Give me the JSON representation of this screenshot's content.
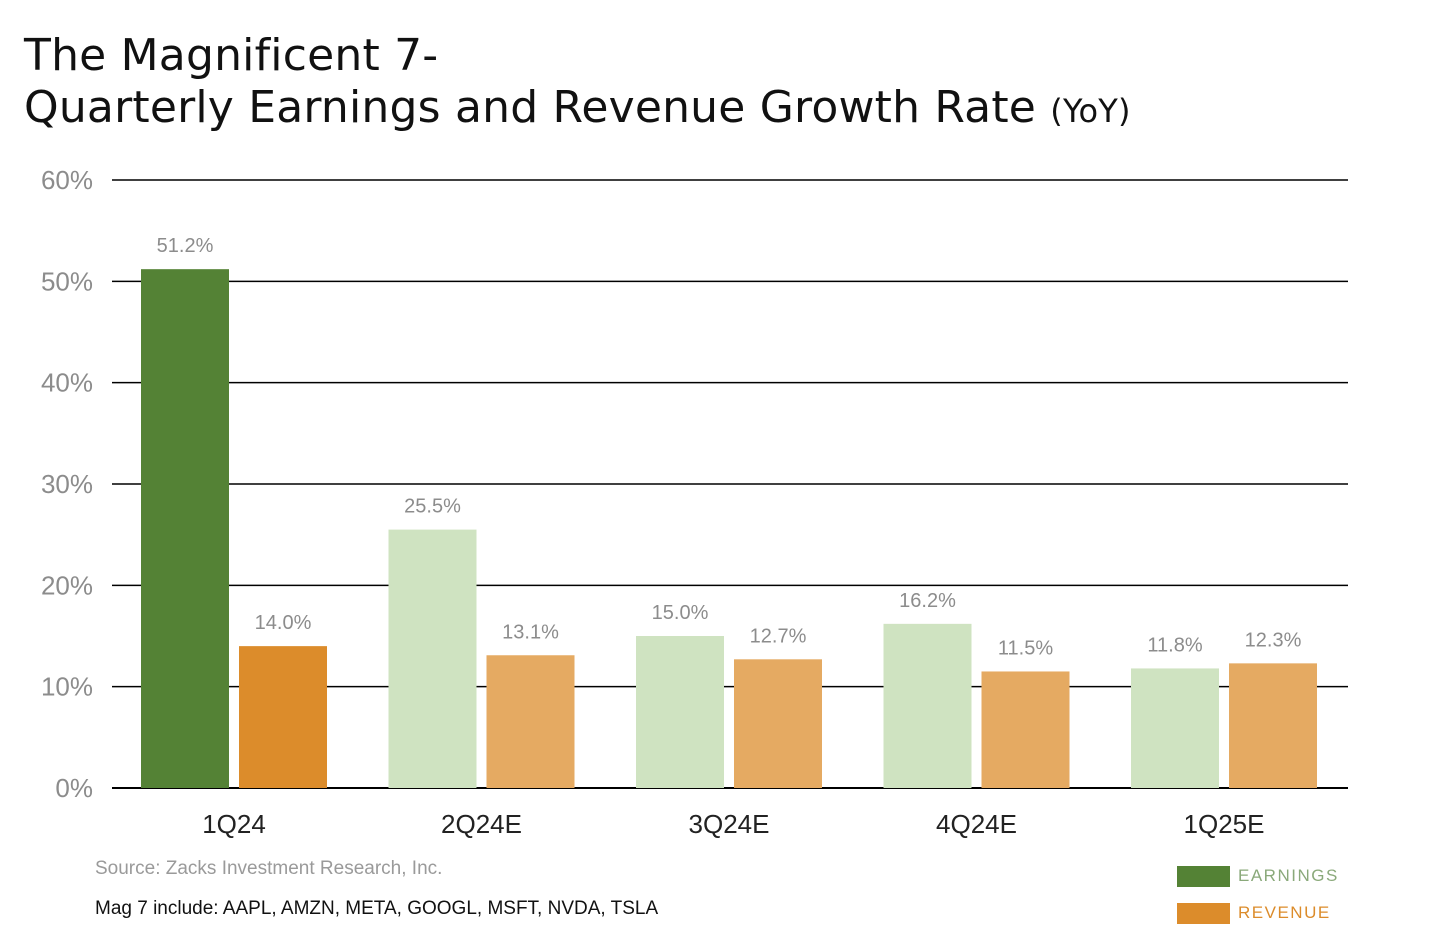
{
  "title": {
    "line1": "The Magnificent 7-",
    "line2": "Quarterly Earnings and Revenue Growth Rate",
    "suffix": "(YoY)"
  },
  "colors": {
    "earnings_actual": "#548235",
    "revenue_actual": "#DC8C2B",
    "earnings_estimate": "#CFE3C1",
    "revenue_estimate": "#E5AA62",
    "label_text": "#8C8C8C",
    "axis_text": "#8C8C8C",
    "gridline": "#000000"
  },
  "chart_data": {
    "type": "bar",
    "title": "The Magnificent 7- Quarterly Earnings and Revenue Growth Rate (YoY)",
    "xlabel": "",
    "ylabel": "",
    "ylim": [
      0,
      60
    ],
    "yticks": [
      0,
      10,
      20,
      30,
      40,
      50,
      60
    ],
    "ytick_labels": [
      "0%",
      "10%",
      "20%",
      "30%",
      "40%",
      "50%",
      "60%"
    ],
    "grid": true,
    "categories": [
      "1Q24",
      "2Q24E",
      "3Q24E",
      "4Q24E",
      "1Q25E"
    ],
    "series": [
      {
        "name": "EARNINGS",
        "values": [
          51.2,
          25.5,
          15.0,
          16.2,
          11.8
        ],
        "labels": [
          "51.2%",
          "25.5%",
          "15.0%",
          "16.2%",
          "11.8%"
        ]
      },
      {
        "name": "REVENUE",
        "values": [
          14.0,
          13.1,
          12.7,
          11.5,
          12.3
        ],
        "labels": [
          "14.0%",
          "13.1%",
          "12.7%",
          "11.5%",
          "12.3%"
        ]
      }
    ],
    "actual_categories": [
      "1Q24"
    ],
    "legend_position": "bottom-right"
  },
  "footer": {
    "source": "Source: Zacks Investment Research, Inc.",
    "note": "Mag 7 include: AAPL, AMZN, META, GOOGL, MSFT, NVDA, TSLA"
  },
  "legend": {
    "items": [
      {
        "label": "EARNINGS",
        "color": "#548235",
        "text_color": "#8AA97A"
      },
      {
        "label": "REVENUE",
        "color": "#DC8C2B",
        "text_color": "#DC8C2B"
      }
    ]
  }
}
